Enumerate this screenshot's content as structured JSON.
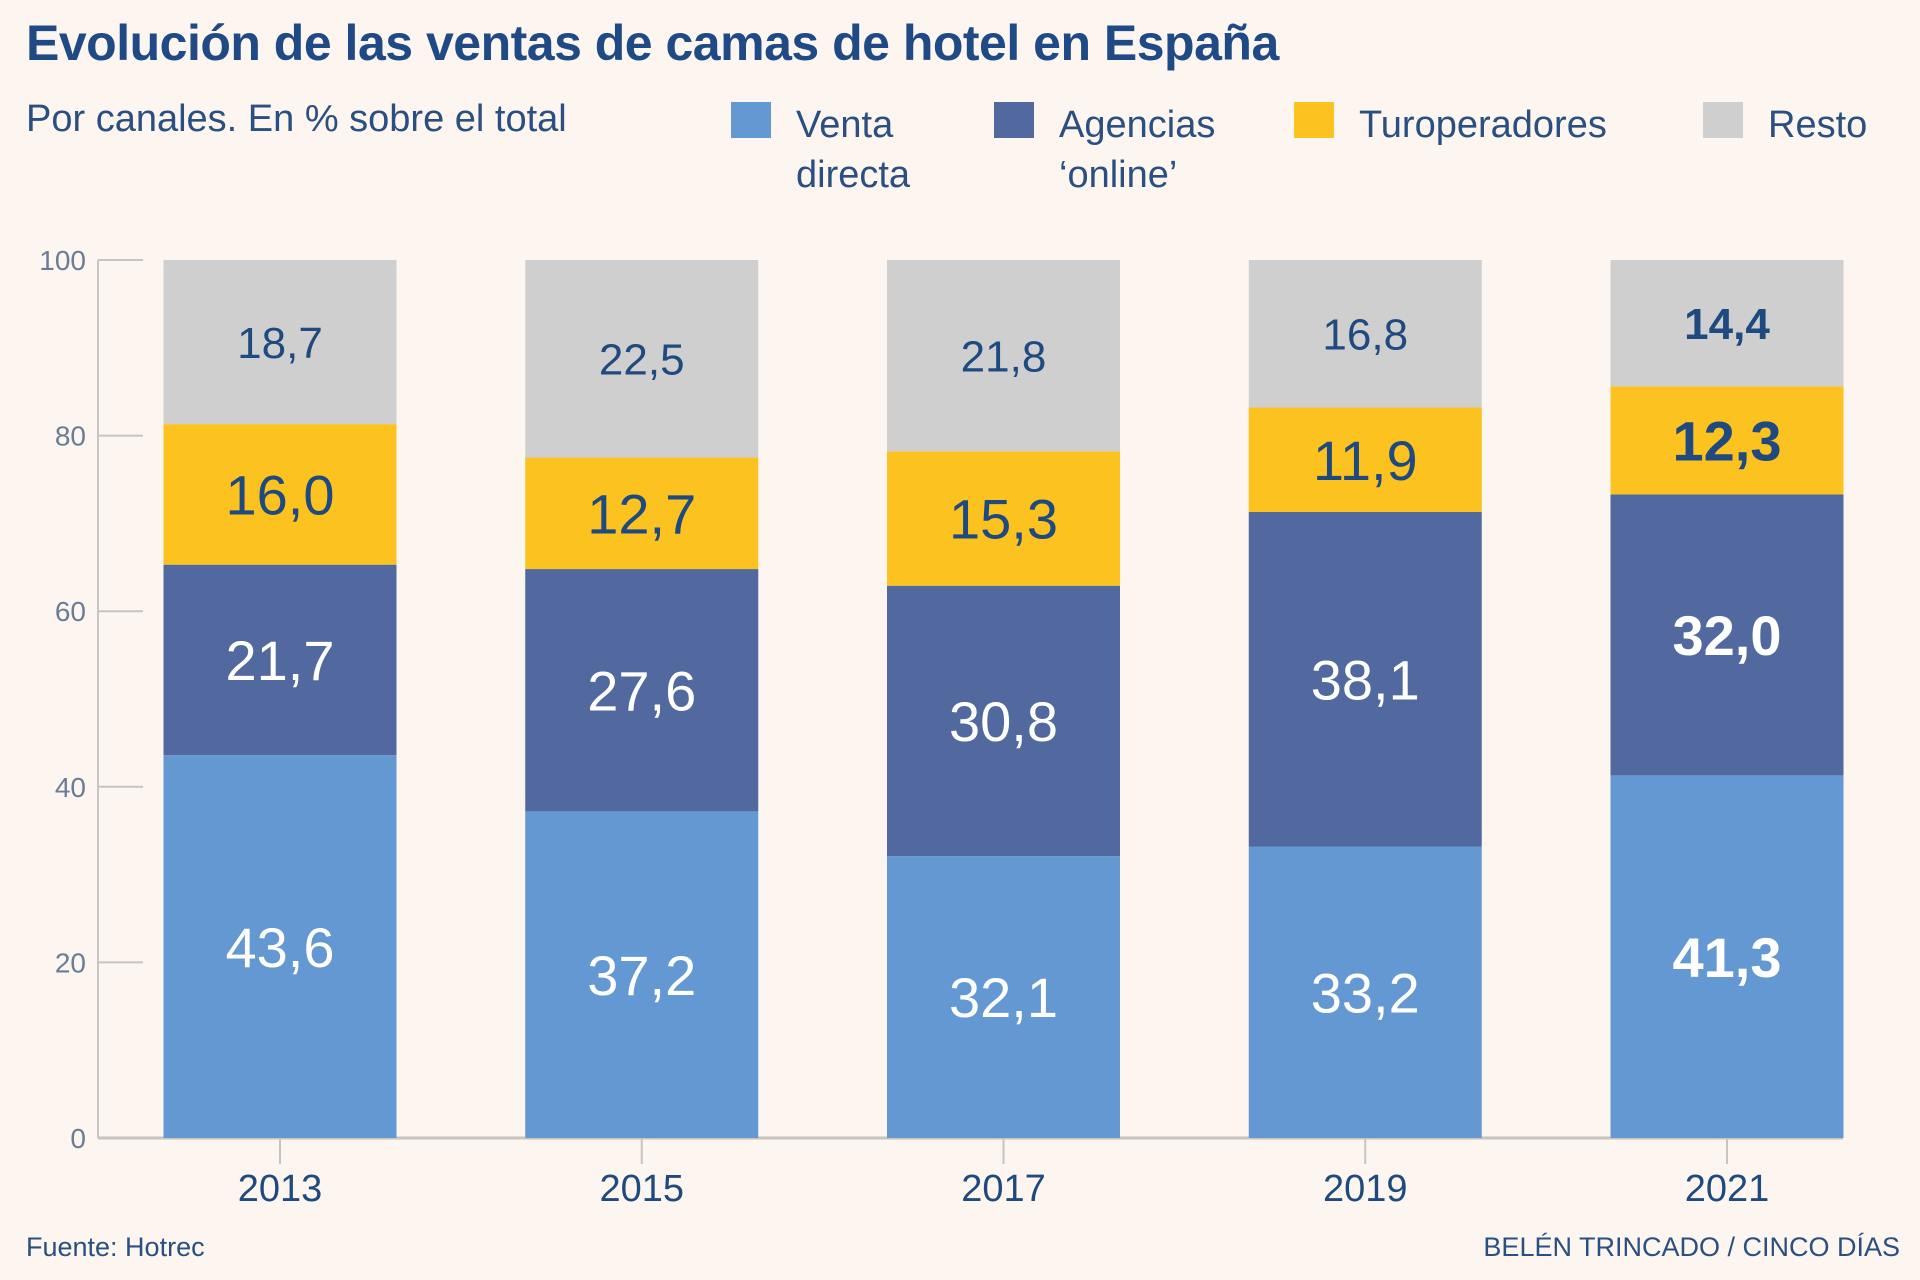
{
  "title": "Evolución de las ventas de camas de hotel en España",
  "subtitle": "Por canales. En % sobre el total",
  "legend": [
    {
      "label": "Venta\ndirecta",
      "color": "#6498d2"
    },
    {
      "label": "Agencias\n‘online’",
      "color": "#51699f"
    },
    {
      "label": "Turoperadores",
      "color": "#fbc220"
    },
    {
      "label": "Resto",
      "color": "#d0cfcf"
    }
  ],
  "source": "Fuente: Hotrec",
  "credit": "BELÉN TRINCADO / CINCO DÍAS",
  "chart_data": {
    "type": "bar",
    "stacked": true,
    "categories": [
      "2013",
      "2015",
      "2017",
      "2019",
      "2021"
    ],
    "series": [
      {
        "name": "Venta directa",
        "color": "#6498d2",
        "values": [
          43.6,
          37.2,
          32.1,
          33.2,
          41.3
        ],
        "labels": [
          "43,6",
          "37,2",
          "32,1",
          "33,2",
          "41,3"
        ]
      },
      {
        "name": "Agencias ‘online’",
        "color": "#51699f",
        "values": [
          21.7,
          27.6,
          30.8,
          38.1,
          32.0
        ],
        "labels": [
          "21,7",
          "27,6",
          "30,8",
          "38,1",
          "32,0"
        ]
      },
      {
        "name": "Turoperadores",
        "color": "#fbc220",
        "values": [
          16.0,
          12.7,
          15.3,
          11.9,
          12.3
        ],
        "labels": [
          "16,0",
          "12,7",
          "15,3",
          "11,9",
          "12,3"
        ]
      },
      {
        "name": "Resto",
        "color": "#d0cfcf",
        "values": [
          18.7,
          22.5,
          21.8,
          16.8,
          14.4
        ],
        "labels": [
          "18,7",
          "22,5",
          "21,8",
          "16,8",
          "14,4"
        ]
      }
    ],
    "ylim": [
      0,
      100
    ],
    "yticks": [
      "0",
      "20",
      "40",
      "60",
      "80",
      "100"
    ],
    "grid": false,
    "legend_position": "top",
    "highlight_last_category_bold": true
  }
}
